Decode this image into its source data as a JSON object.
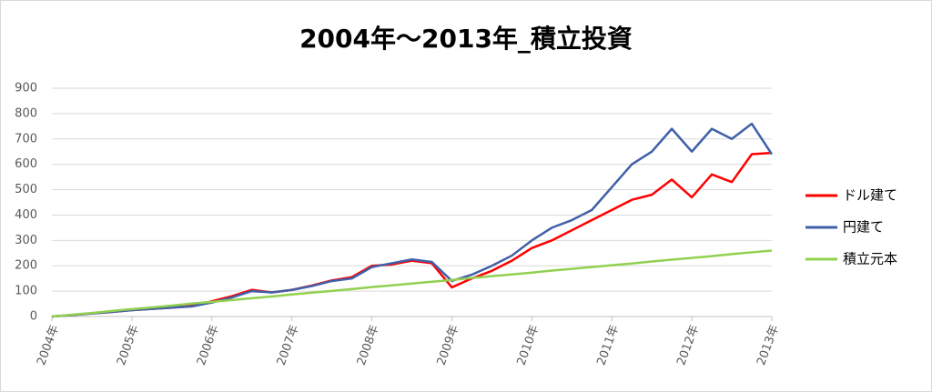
{
  "chart_data": {
    "type": "line",
    "title": "2004年～2013年_積立投資",
    "x": [
      2004,
      2004.25,
      2004.5,
      2004.75,
      2005,
      2005.25,
      2005.5,
      2005.75,
      2006,
      2006.25,
      2006.5,
      2006.75,
      2007,
      2007.25,
      2007.5,
      2007.75,
      2008,
      2008.25,
      2008.5,
      2008.75,
      2009,
      2009.25,
      2009.5,
      2009.75,
      2010,
      2010.25,
      2010.5,
      2010.75,
      2011,
      2011.25,
      2011.5,
      2011.75,
      2012,
      2012.25,
      2012.5,
      2012.75,
      2013
    ],
    "series": [
      {
        "name": "ドル建て",
        "color": "#ff0000",
        "values": [
          0,
          6,
          12,
          18,
          25,
          30,
          35,
          42,
          60,
          80,
          105,
          95,
          105,
          122,
          142,
          155,
          200,
          205,
          220,
          210,
          115,
          150,
          180,
          220,
          270,
          300,
          340,
          380,
          420,
          460,
          480,
          540,
          470,
          560,
          530,
          640,
          645
        ]
      },
      {
        "name": "円建て",
        "color": "#4060a8",
        "values": [
          0,
          6,
          12,
          18,
          25,
          30,
          35,
          40,
          55,
          75,
          100,
          95,
          105,
          120,
          140,
          150,
          195,
          210,
          225,
          215,
          140,
          165,
          200,
          240,
          300,
          350,
          380,
          420,
          510,
          600,
          650,
          740,
          650,
          740,
          700,
          760,
          640
        ]
      },
      {
        "name": "積立元本",
        "color": "#92d050",
        "values": [
          0,
          7,
          14,
          22,
          29,
          36,
          43,
          51,
          58,
          65,
          72,
          79,
          87,
          94,
          101,
          108,
          116,
          123,
          130,
          137,
          144,
          152,
          159,
          166,
          173,
          181,
          188,
          195,
          202,
          209,
          217,
          224,
          231,
          238,
          246,
          253,
          260
        ]
      }
    ],
    "xlim": [
      2004,
      2013
    ],
    "xticks": [
      {
        "value": 2004,
        "label": "2004年"
      },
      {
        "value": 2005,
        "label": "2005年"
      },
      {
        "value": 2006,
        "label": "2006年"
      },
      {
        "value": 2007,
        "label": "2007年"
      },
      {
        "value": 2008,
        "label": "2008年"
      },
      {
        "value": 2009,
        "label": "2009年"
      },
      {
        "value": 2010,
        "label": "2010年"
      },
      {
        "value": 2011,
        "label": "2011年"
      },
      {
        "value": 2012,
        "label": "2012年"
      },
      {
        "value": 2013,
        "label": "2013年"
      }
    ],
    "ylim": [
      0,
      900
    ],
    "yticks": [
      0,
      100,
      200,
      300,
      400,
      500,
      600,
      700,
      800,
      900
    ],
    "grid": true,
    "legend": "right"
  }
}
